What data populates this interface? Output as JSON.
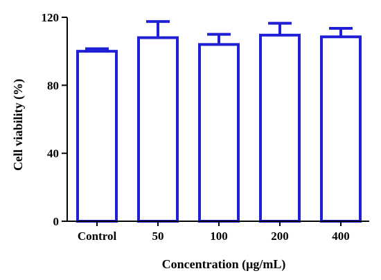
{
  "chart_data": {
    "type": "bar",
    "categories": [
      "Control",
      "50",
      "100",
      "200",
      "400"
    ],
    "series": [
      {
        "values": [
          100,
          108,
          104,
          109.5,
          108.5
        ],
        "errors": [
          1.5,
          9.5,
          6,
          7,
          5
        ],
        "color": "#1f1fd6"
      }
    ],
    "title": "",
    "xlabel": "Concentration (μg/mL)",
    "ylabel": "Cell viability (%)",
    "ylim": [
      0,
      120
    ],
    "yticks": [
      0,
      40,
      80,
      120
    ],
    "grid": false,
    "legend": "none",
    "bar_fill": "#ffffff",
    "axis_color": "#000000"
  }
}
